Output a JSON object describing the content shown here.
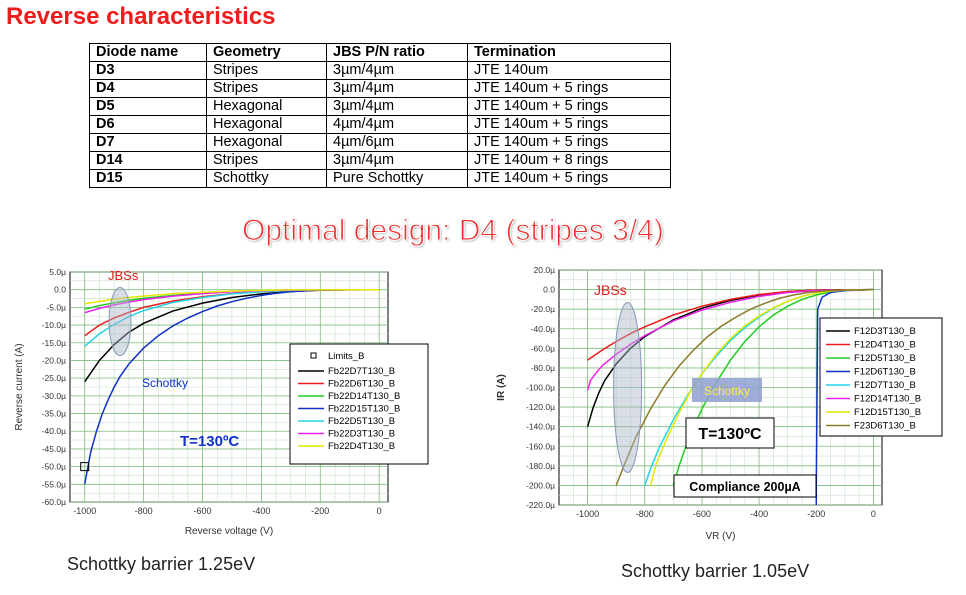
{
  "title": "Reverse characteristics",
  "table": {
    "headers": [
      "Diode name",
      "Geometry",
      "JBS P/N ratio",
      "Termination"
    ],
    "rows": [
      [
        "D3",
        "Stripes",
        "3µm/4µm",
        "JTE 140um"
      ],
      [
        "D4",
        "Stripes",
        "3µm/4µm",
        "JTE 140um + 5 rings"
      ],
      [
        "D5",
        "Hexagonal",
        "3µm/4µm",
        "JTE 140um + 5 rings"
      ],
      [
        "D6",
        "Hexagonal",
        "4µm/4µm",
        "JTE 140um + 5 rings"
      ],
      [
        "D7",
        "Hexagonal",
        "4µm/6µm",
        "JTE 140um + 5 rings"
      ],
      [
        "D14",
        "Stripes",
        "3µm/4µm",
        "JTE 140um + 8 rings"
      ],
      [
        "D15",
        "Schottky",
        "Pure Schottky",
        "JTE 140um + 5 rings"
      ]
    ]
  },
  "optimal_text": "Optimal design: D4 (stripes 3/4)",
  "captions": {
    "left": "Schottky barrier 1.25eV",
    "right": "Schottky barrier 1.05eV"
  },
  "chart_data": [
    {
      "type": "line",
      "xlabel": "Reverse voltage (V)",
      "ylabel": "Reverse current (A)",
      "xlim": [
        -1050,
        30
      ],
      "ylim": [
        -60,
        5
      ],
      "xticks": [
        "-1000",
        "-800",
        "-600",
        "-400",
        "-200",
        "0"
      ],
      "yticks": [
        "5.0µ",
        "0.0",
        "-5.0µ",
        "-10.0µ",
        "-15.0µ",
        "-20.0µ",
        "-25.0µ",
        "-30.0µ",
        "-35.0µ",
        "-40.0µ",
        "-45.0µ",
        "-50.0µ",
        "-55.0µ",
        "-60.0µ"
      ],
      "grid": true,
      "legend_position": "right",
      "legend_title": "Limits_B",
      "annotations": [
        "JBSs",
        "Schottky",
        "T=130ºC"
      ],
      "series": [
        {
          "name": "Fb22D7T130_B",
          "color": "#000000",
          "points": [
            [
              -1000,
              -26
            ],
            [
              -950,
              -20
            ],
            [
              -900,
              -15.5
            ],
            [
              -850,
              -12
            ],
            [
              -800,
              -9.5
            ],
            [
              -700,
              -6
            ],
            [
              -600,
              -3.8
            ],
            [
              -500,
              -2.2
            ],
            [
              -400,
              -1.2
            ],
            [
              -300,
              -0.5
            ],
            [
              -200,
              -0.15
            ],
            [
              -100,
              0
            ],
            [
              0,
              0
            ]
          ]
        },
        {
          "name": "Fb22D6T130_B",
          "color": "#ee1c1c",
          "points": [
            [
              -1000,
              -13
            ],
            [
              -950,
              -10
            ],
            [
              -900,
              -8
            ],
            [
              -850,
              -6.4
            ],
            [
              -800,
              -5
            ],
            [
              -700,
              -3.2
            ],
            [
              -600,
              -2
            ],
            [
              -500,
              -1.1
            ],
            [
              -400,
              -0.55
            ],
            [
              -300,
              -0.2
            ],
            [
              -200,
              0
            ],
            [
              0,
              0
            ]
          ]
        },
        {
          "name": "Fb22D14T130_B",
          "color": "#22cc22",
          "points": [
            [
              -1000,
              -5.5
            ],
            [
              -950,
              -4.5
            ],
            [
              -900,
              -3.7
            ],
            [
              -850,
              -3
            ],
            [
              -800,
              -2.4
            ],
            [
              -700,
              -1.6
            ],
            [
              -600,
              -1
            ],
            [
              -500,
              -0.6
            ],
            [
              -400,
              -0.3
            ],
            [
              -300,
              -0.1
            ],
            [
              0,
              0
            ]
          ]
        },
        {
          "name": "Fb22D15T130_B",
          "color": "#1030c8",
          "points": [
            [
              -1000,
              -55
            ],
            [
              -980,
              -46
            ],
            [
              -960,
              -40
            ],
            [
              -940,
              -35
            ],
            [
              -920,
              -31
            ],
            [
              -900,
              -27.5
            ],
            [
              -880,
              -24.5
            ],
            [
              -850,
              -21
            ],
            [
              -800,
              -16.5
            ],
            [
              -750,
              -13
            ],
            [
              -700,
              -10.2
            ],
            [
              -650,
              -8
            ],
            [
              -600,
              -6.2
            ],
            [
              -550,
              -4.6
            ],
            [
              -500,
              -3.4
            ],
            [
              -450,
              -2.4
            ],
            [
              -400,
              -1.6
            ],
            [
              -350,
              -1
            ],
            [
              -300,
              -0.6
            ],
            [
              -250,
              -0.3
            ],
            [
              -200,
              -0.1
            ],
            [
              -100,
              0
            ],
            [
              0,
              0
            ]
          ]
        },
        {
          "name": "Fb22D5T130_B",
          "color": "#22d4e8",
          "points": [
            [
              -1000,
              -16
            ],
            [
              -950,
              -12.5
            ],
            [
              -900,
              -9.8
            ],
            [
              -850,
              -7.6
            ],
            [
              -800,
              -5.9
            ],
            [
              -700,
              -3.6
            ],
            [
              -600,
              -2.2
            ],
            [
              -500,
              -1.2
            ],
            [
              -400,
              -0.6
            ],
            [
              -300,
              -0.2
            ],
            [
              -200,
              0
            ],
            [
              0,
              0
            ]
          ]
        },
        {
          "name": "Fb22D3T130_B",
          "color": "#ee22ee",
          "points": [
            [
              -1000,
              -6.5
            ],
            [
              -950,
              -5.3
            ],
            [
              -900,
              -4.3
            ],
            [
              -850,
              -3.5
            ],
            [
              -800,
              -2.8
            ],
            [
              -700,
              -1.8
            ],
            [
              -600,
              -1.1
            ],
            [
              -500,
              -0.6
            ],
            [
              -400,
              -0.3
            ],
            [
              -300,
              -0.1
            ],
            [
              0,
              0
            ]
          ]
        },
        {
          "name": "Fb22D4T130_B",
          "color": "#e8e800",
          "points": [
            [
              -1000,
              -4
            ],
            [
              -950,
              -3.3
            ],
            [
              -900,
              -2.7
            ],
            [
              -850,
              -2.2
            ],
            [
              -800,
              -1.8
            ],
            [
              -700,
              -1.1
            ],
            [
              -600,
              -0.7
            ],
            [
              -500,
              -0.4
            ],
            [
              -400,
              -0.2
            ],
            [
              -300,
              -0.05
            ],
            [
              0,
              0
            ]
          ]
        }
      ]
    },
    {
      "type": "line",
      "xlabel": "VR (V)",
      "ylabel": "IR (A)",
      "xlim": [
        -1100,
        30
      ],
      "ylim": [
        -220,
        20
      ],
      "xticks": [
        "-1000",
        "-800",
        "-600",
        "-400",
        "-200",
        "0"
      ],
      "yticks": [
        "20.0µ",
        "0.0",
        "-20.0µ",
        "-40.0µ",
        "-60.0µ",
        "-80.0µ",
        "-100.0µ",
        "-120.0µ",
        "-140.0µ",
        "-160.0µ",
        "-180.0µ",
        "-200.0µ",
        "-220.0µ"
      ],
      "grid": true,
      "legend_position": "right",
      "annotations": [
        "JBSs",
        "Schottky",
        "T=130ºC",
        "Compliance 200µA"
      ],
      "series": [
        {
          "name": "F12D3T130_B",
          "color": "#000000",
          "points": [
            [
              -1000,
              -140
            ],
            [
              -980,
              -120
            ],
            [
              -960,
              -105
            ],
            [
              -940,
              -93
            ],
            [
              -900,
              -76
            ],
            [
              -850,
              -60
            ],
            [
              -800,
              -48
            ],
            [
              -700,
              -31
            ],
            [
              -600,
              -19
            ],
            [
              -500,
              -11
            ],
            [
              -400,
              -5.5
            ],
            [
              -300,
              -2
            ],
            [
              -200,
              -0.5
            ],
            [
              0,
              0
            ]
          ]
        },
        {
          "name": "F12D4T130_B",
          "color": "#ee1c1c",
          "points": [
            [
              -1000,
              -72
            ],
            [
              -950,
              -62
            ],
            [
              -900,
              -53
            ],
            [
              -850,
              -45
            ],
            [
              -800,
              -38
            ],
            [
              -700,
              -26
            ],
            [
              -600,
              -17
            ],
            [
              -500,
              -10
            ],
            [
              -400,
              -5
            ],
            [
              -300,
              -2
            ],
            [
              -200,
              -0.5
            ],
            [
              0,
              0
            ]
          ]
        },
        {
          "name": "F12D5T130_B",
          "color": "#22cc22",
          "points": [
            [
              -700,
              -200
            ],
            [
              -680,
              -180
            ],
            [
              -650,
              -155
            ],
            [
              -600,
              -122
            ],
            [
              -550,
              -95
            ],
            [
              -500,
              -72
            ],
            [
              -450,
              -53
            ],
            [
              -400,
              -38
            ],
            [
              -350,
              -26
            ],
            [
              -300,
              -17
            ],
            [
              -250,
              -10
            ],
            [
              -200,
              -5.5
            ],
            [
              -150,
              -2.5
            ],
            [
              -100,
              -0.8
            ],
            [
              0,
              0
            ]
          ]
        },
        {
          "name": "F12D6T130_B",
          "color": "#1030c8",
          "points": [
            [
              -200,
              -220
            ],
            [
              -200,
              -200
            ],
            [
              -195,
              -20
            ],
            [
              -180,
              -8
            ],
            [
              -150,
              -3
            ],
            [
              -100,
              -1
            ],
            [
              0,
              0
            ]
          ]
        },
        {
          "name": "F12D7T130_B",
          "color": "#22d4e8",
          "points": [
            [
              -800,
              -200
            ],
            [
              -780,
              -183
            ],
            [
              -750,
              -162
            ],
            [
              -700,
              -133
            ],
            [
              -650,
              -108
            ],
            [
              -600,
              -86
            ],
            [
              -550,
              -68
            ],
            [
              -500,
              -52
            ],
            [
              -450,
              -39
            ],
            [
              -400,
              -28
            ],
            [
              -350,
              -19
            ],
            [
              -300,
              -12
            ],
            [
              -250,
              -7
            ],
            [
              -200,
              -3.5
            ],
            [
              -150,
              -1.5
            ],
            [
              -100,
              -0.5
            ],
            [
              0,
              0
            ]
          ]
        },
        {
          "name": "F12D14T130_B",
          "color": "#ee22ee",
          "points": [
            [
              -1000,
              -103
            ],
            [
              -990,
              -93
            ],
            [
              -970,
              -85
            ],
            [
              -950,
              -78
            ],
            [
              -900,
              -66
            ],
            [
              -850,
              -56
            ],
            [
              -800,
              -47
            ],
            [
              -700,
              -32
            ],
            [
              -600,
              -21
            ],
            [
              -500,
              -13
            ],
            [
              -400,
              -7
            ],
            [
              -300,
              -3
            ],
            [
              -200,
              -1
            ],
            [
              0,
              0
            ]
          ]
        },
        {
          "name": "F12D15T130_B",
          "color": "#e8e800",
          "points": [
            [
              -780,
              -200
            ],
            [
              -760,
              -178
            ],
            [
              -720,
              -150
            ],
            [
              -680,
              -126
            ],
            [
              -640,
              -104
            ],
            [
              -600,
              -86
            ],
            [
              -550,
              -66
            ],
            [
              -500,
              -50
            ],
            [
              -450,
              -37
            ],
            [
              -400,
              -27
            ],
            [
              -350,
              -18.5
            ],
            [
              -300,
              -12
            ],
            [
              -250,
              -7
            ],
            [
              -200,
              -3.5
            ],
            [
              -150,
              -1.5
            ],
            [
              -100,
              -0.5
            ],
            [
              0,
              0
            ]
          ]
        },
        {
          "name": "F23D6T130_B",
          "color": "#8b7a2a",
          "points": [
            [
              -900,
              -200
            ],
            [
              -870,
              -178
            ],
            [
              -830,
              -150
            ],
            [
              -780,
              -122
            ],
            [
              -730,
              -98
            ],
            [
              -680,
              -78
            ],
            [
              -630,
              -62
            ],
            [
              -580,
              -48
            ],
            [
              -530,
              -37
            ],
            [
              -480,
              -28
            ],
            [
              -430,
              -20
            ],
            [
              -380,
              -14
            ],
            [
              -330,
              -9
            ],
            [
              -280,
              -5.5
            ],
            [
              -230,
              -3
            ],
            [
              -180,
              -1.5
            ],
            [
              -130,
              -0.6
            ],
            [
              0,
              0
            ]
          ]
        }
      ]
    }
  ]
}
